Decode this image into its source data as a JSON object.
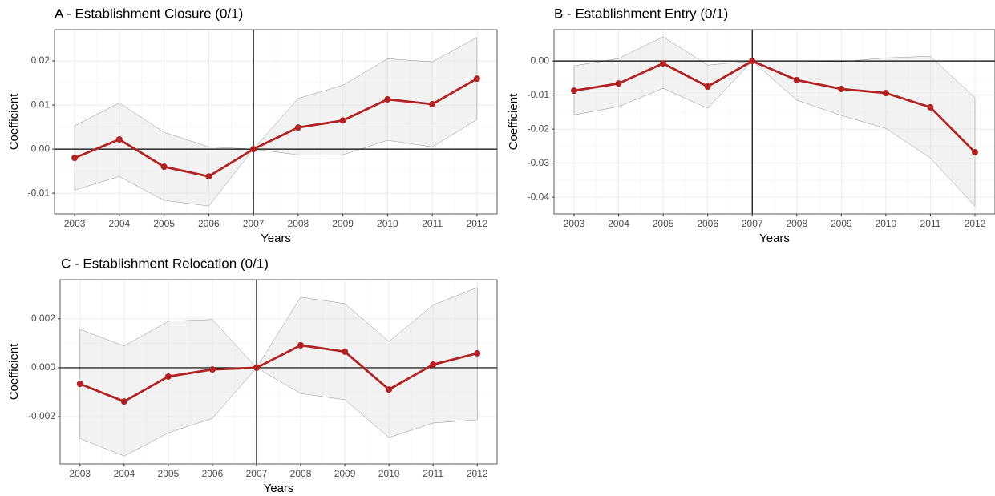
{
  "chart_data": [
    {
      "type": "line",
      "title": "A - Establishment Closure (0/1)",
      "x_label": "Years",
      "y_label": "Coefficient",
      "x": [
        2003,
        2004,
        2005,
        2006,
        2007,
        2008,
        2009,
        2010,
        2011,
        2012
      ],
      "values": [
        -0.002,
        0.0022,
        -0.004,
        -0.0062,
        0,
        0.0049,
        0.0065,
        0.0113,
        0.0102,
        0.016
      ],
      "upper": [
        0.0053,
        0.0105,
        0.0038,
        0.0005,
        0,
        0.0115,
        0.0145,
        0.0205,
        0.0198,
        0.0253
      ],
      "lower": [
        -0.0093,
        -0.0062,
        -0.0116,
        -0.0129,
        0,
        -0.0013,
        -0.0013,
        0.002,
        0.0005,
        0.0067
      ],
      "color": "#b22222",
      "band_color": "#d9d9d9",
      "xlim": [
        2002.55,
        2012.45
      ],
      "xticks": [
        2003,
        2004,
        2005,
        2006,
        2007,
        2008,
        2009,
        2010,
        2011,
        2012
      ],
      "ylim": [
        -0.0147,
        0.0271
      ],
      "yticks": [
        -0.01,
        {
          "value": 0,
          "label": "0.00"
        },
        0.01,
        0.02
      ],
      "hline": 0,
      "vline": 2007,
      "grid": true
    },
    {
      "type": "line",
      "title": "B - Establishment Entry (0/1)",
      "x_label": "Years",
      "y_label": "Coefficient",
      "x": [
        2003,
        2004,
        2005,
        2006,
        2007,
        2008,
        2009,
        2010,
        2011,
        2012
      ],
      "values": [
        -0.0087,
        -0.0066,
        -0.0007,
        -0.0075,
        0,
        -0.0056,
        -0.0082,
        -0.0094,
        -0.0136,
        -0.0268
      ],
      "upper": [
        -0.0014,
        0.0007,
        0.0071,
        -0.0012,
        0,
        0.0,
        -0.0002,
        0.0009,
        0.0014,
        -0.0108
      ],
      "lower": [
        -0.0158,
        -0.0134,
        -0.008,
        -0.0139,
        0,
        -0.0115,
        -0.016,
        -0.0198,
        -0.0285,
        -0.0426
      ],
      "color": "#b22222",
      "band_color": "#d9d9d9",
      "xlim": [
        2002.55,
        2012.45
      ],
      "xticks": [
        2003,
        2004,
        2005,
        2006,
        2007,
        2008,
        2009,
        2010,
        2011,
        2012
      ],
      "ylim": [
        -0.0449,
        0.0092
      ],
      "yticks": [
        -0.04,
        -0.03,
        -0.02,
        -0.01,
        {
          "value": 0,
          "label": "0.00"
        }
      ],
      "hline": 0,
      "vline": 2007,
      "grid": true
    },
    {
      "type": "line",
      "title": "C - Establishment Relocation (0/1)",
      "x_label": "Years",
      "y_label": "Coefficient",
      "x": [
        2003,
        2004,
        2005,
        2006,
        2007,
        2008,
        2009,
        2010,
        2011,
        2012
      ],
      "values": [
        -0.00066,
        -0.00138,
        -0.00036,
        -7e-05,
        0,
        0.00092,
        0.00066,
        -0.00089,
        0.00013,
        0.00059
      ],
      "upper": [
        0.00157,
        0.00089,
        0.0019,
        0.00197,
        0,
        0.00289,
        0.00262,
        0.00108,
        0.00256,
        0.00328
      ],
      "lower": [
        -0.00289,
        -0.00361,
        -0.00266,
        -0.00207,
        0,
        -0.00105,
        -0.00131,
        -0.00285,
        -0.00226,
        -0.00213
      ],
      "color": "#b22222",
      "band_color": "#d9d9d9",
      "xlim": [
        2002.55,
        2012.45
      ],
      "xticks": [
        2003,
        2004,
        2005,
        2006,
        2007,
        2008,
        2009,
        2010,
        2011,
        2012
      ],
      "ylim": [
        -0.00393,
        0.0036
      ],
      "yticks": [
        -0.002,
        {
          "value": 0,
          "label": "0.000"
        },
        0.002
      ],
      "hline": 0,
      "vline": 2007,
      "grid": true
    }
  ]
}
